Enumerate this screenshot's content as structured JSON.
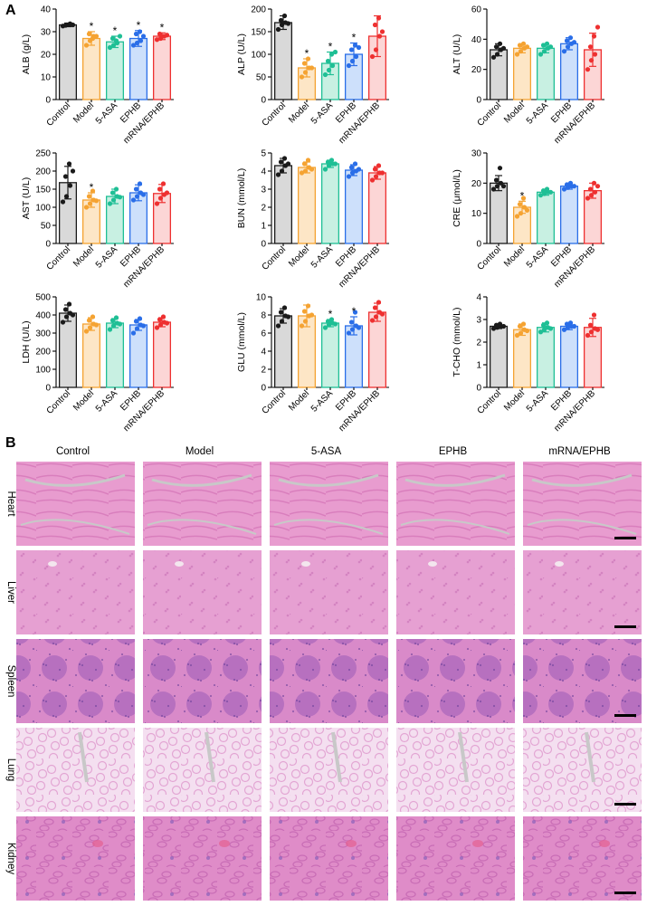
{
  "panel_a_label": "A",
  "panel_b_label": "B",
  "colors": {
    "Control": {
      "stroke": "#1a1a1a",
      "fill": "#d9d9d9",
      "dot": "#1a1a1a"
    },
    "Model": {
      "stroke": "#f5a332",
      "fill": "#fde6c6",
      "dot": "#f5a332"
    },
    "5-ASA": {
      "stroke": "#1fbf95",
      "fill": "#c8f0e2",
      "dot": "#1fbf95"
    },
    "EPHB": {
      "stroke": "#2a6ee8",
      "fill": "#cde0fb",
      "dot": "#2a6ee8"
    },
    "mRNA/EPHB": {
      "stroke": "#ee3030",
      "fill": "#fcd6d6",
      "dot": "#ee3030"
    }
  },
  "chart_data": [
    {
      "type": "bar",
      "ylabel": "ALB (g/L)",
      "ylim": [
        0,
        40
      ],
      "yticks": [
        0,
        10,
        20,
        30,
        40
      ],
      "categories": [
        "Control",
        "Model",
        "5-ASA",
        "EPHB",
        "mRNA/EPHB"
      ],
      "values": [
        33,
        27,
        25.5,
        27,
        28
      ],
      "errors": [
        0.8,
        3,
        2.5,
        3.5,
        1.5
      ],
      "points": [
        [
          32.5,
          33,
          33.5,
          32.8,
          33.2,
          33
        ],
        [
          24,
          26,
          28,
          29,
          27,
          28
        ],
        [
          23,
          24,
          25,
          27,
          26,
          28
        ],
        [
          24,
          25,
          26,
          29,
          30,
          28
        ],
        [
          26.5,
          27,
          28,
          29,
          28,
          28.5
        ]
      ],
      "significance": [
        "",
        "*",
        "*",
        "*",
        "*"
      ]
    },
    {
      "type": "bar",
      "ylabel": "ALP (U/L)",
      "ylim": [
        0,
        200
      ],
      "yticks": [
        0,
        50,
        100,
        150,
        200
      ],
      "categories": [
        "Control",
        "Model",
        "5-ASA",
        "EPHB",
        "mRNA/EPHB"
      ],
      "values": [
        170,
        70,
        80,
        100,
        140
      ],
      "errors": [
        15,
        20,
        25,
        25,
        45
      ],
      "points": [
        [
          155,
          165,
          170,
          175,
          185,
          168
        ],
        [
          50,
          60,
          70,
          80,
          90,
          70
        ],
        [
          55,
          65,
          75,
          85,
          100,
          105
        ],
        [
          75,
          85,
          95,
          110,
          120,
          115
        ],
        [
          95,
          110,
          140,
          165,
          180,
          150
        ]
      ],
      "significance": [
        "",
        "*",
        "*",
        "*",
        ""
      ]
    },
    {
      "type": "bar",
      "ylabel": "ALT (U/L)",
      "ylim": [
        0,
        60
      ],
      "yticks": [
        0,
        20,
        40,
        60
      ],
      "categories": [
        "Control",
        "Model",
        "5-ASA",
        "EPHB",
        "mRNA/EPHB"
      ],
      "values": [
        33,
        34,
        34,
        37,
        33
      ],
      "errors": [
        4,
        3,
        3,
        4,
        11
      ],
      "points": [
        [
          28,
          30,
          33,
          35,
          37,
          34
        ],
        [
          30,
          32,
          34,
          36,
          37,
          35
        ],
        [
          30,
          32,
          34,
          36,
          37,
          35
        ],
        [
          32,
          35,
          37,
          39,
          41,
          38
        ],
        [
          20,
          26,
          30,
          35,
          42,
          48
        ]
      ],
      "significance": [
        "",
        "",
        "",
        "",
        ""
      ]
    },
    {
      "type": "bar",
      "ylabel": "AST (U/L)",
      "ylim": [
        0,
        250
      ],
      "yticks": [
        0,
        50,
        100,
        150,
        200,
        250
      ],
      "categories": [
        "Control",
        "Model",
        "5-ASA",
        "EPHB",
        "mRNA/EPHB"
      ],
      "values": [
        168,
        120,
        130,
        140,
        138
      ],
      "errors": [
        45,
        20,
        20,
        22,
        25
      ],
      "points": [
        [
          115,
          130,
          160,
          185,
          220,
          200
        ],
        [
          100,
          110,
          120,
          130,
          145,
          118
        ],
        [
          110,
          120,
          130,
          140,
          150,
          128
        ],
        [
          120,
          130,
          140,
          150,
          165,
          135
        ],
        [
          110,
          125,
          135,
          150,
          165,
          140
        ]
      ],
      "significance": [
        "",
        "*",
        "",
        "",
        ""
      ]
    },
    {
      "type": "bar",
      "ylabel": "BUN (mmol/L)",
      "ylim": [
        0,
        5
      ],
      "yticks": [
        0,
        1,
        2,
        3,
        4,
        5
      ],
      "categories": [
        "Control",
        "Model",
        "5-ASA",
        "EPHB",
        "mRNA/EPHB"
      ],
      "values": [
        4.3,
        4.2,
        4.4,
        4.05,
        3.9
      ],
      "errors": [
        0.4,
        0.3,
        0.2,
        0.3,
        0.35
      ],
      "points": [
        [
          3.8,
          4.0,
          4.3,
          4.5,
          4.7,
          4.4
        ],
        [
          3.9,
          4.0,
          4.2,
          4.4,
          4.6,
          4.1
        ],
        [
          4.1,
          4.3,
          4.4,
          4.5,
          4.6,
          4.4
        ],
        [
          3.7,
          3.9,
          4.0,
          4.2,
          4.4,
          4.1
        ],
        [
          3.5,
          3.7,
          3.9,
          4.1,
          4.3,
          3.9
        ]
      ],
      "significance": [
        "",
        "",
        "",
        "",
        ""
      ]
    },
    {
      "type": "bar",
      "ylabel": "CRE (μmol/L)",
      "ylim": [
        0,
        30
      ],
      "yticks": [
        0,
        10,
        20,
        30
      ],
      "categories": [
        "Control",
        "Model",
        "5-ASA",
        "EPHB",
        "mRNA/EPHB"
      ],
      "values": [
        20,
        12,
        17,
        19,
        17.5
      ],
      "errors": [
        2.5,
        2,
        1,
        1,
        2.5
      ],
      "points": [
        [
          18,
          19,
          20,
          21,
          25,
          19
        ],
        [
          9,
          10,
          12,
          13,
          15,
          11
        ],
        [
          16,
          16.5,
          17,
          17.5,
          18,
          17
        ],
        [
          18,
          18.5,
          19,
          19.5,
          20,
          19
        ],
        [
          15,
          16,
          17,
          18,
          20,
          19
        ]
      ],
      "significance": [
        "",
        "*",
        "",
        "",
        ""
      ]
    },
    {
      "type": "bar",
      "ylabel": "LDH (U/L)",
      "ylim": [
        0,
        500
      ],
      "yticks": [
        0,
        100,
        200,
        300,
        400,
        500
      ],
      "categories": [
        "Control",
        "Model",
        "5-ASA",
        "EPHB",
        "mRNA/EPHB"
      ],
      "values": [
        410,
        350,
        355,
        345,
        360
      ],
      "errors": [
        45,
        35,
        25,
        30,
        25
      ],
      "points": [
        [
          360,
          390,
          410,
          430,
          460,
          400
        ],
        [
          310,
          330,
          350,
          370,
          390,
          345
        ],
        [
          320,
          340,
          355,
          370,
          385,
          350
        ],
        [
          300,
          325,
          345,
          365,
          380,
          340
        ],
        [
          330,
          345,
          360,
          375,
          390,
          355
        ]
      ],
      "significance": [
        "",
        "",
        "",
        "",
        ""
      ]
    },
    {
      "type": "bar",
      "ylabel": "GLU (mmol/L)",
      "ylim": [
        0,
        10
      ],
      "yticks": [
        0,
        2,
        4,
        6,
        8,
        10
      ],
      "categories": [
        "Control",
        "Model",
        "5-ASA",
        "EPHB",
        "mRNA/EPHB"
      ],
      "values": [
        7.9,
        7.9,
        7.1,
        6.8,
        8.3
      ],
      "errors": [
        0.8,
        1.2,
        0.4,
        1.0,
        1.0
      ],
      "points": [
        [
          6.8,
          7.3,
          7.9,
          8.3,
          8.8,
          7.8
        ],
        [
          6.8,
          7.3,
          7.9,
          8.4,
          9.0,
          8.0
        ],
        [
          6.6,
          6.9,
          7.1,
          7.3,
          7.5,
          7.0
        ],
        [
          6.0,
          6.4,
          6.8,
          7.2,
          8.3,
          6.6
        ],
        [
          7.4,
          7.8,
          8.3,
          8.8,
          9.4,
          8.1
        ]
      ],
      "significance": [
        "",
        "",
        "*",
        "*",
        ""
      ]
    },
    {
      "type": "bar",
      "ylabel": "T-CHO (mmol/L)",
      "ylim": [
        0,
        4
      ],
      "yticks": [
        0,
        1,
        2,
        3,
        4
      ],
      "categories": [
        "Control",
        "Model",
        "5-ASA",
        "EPHB",
        "mRNA/EPHB"
      ],
      "values": [
        2.7,
        2.55,
        2.65,
        2.7,
        2.65
      ],
      "errors": [
        0.1,
        0.25,
        0.2,
        0.15,
        0.4
      ],
      "points": [
        [
          2.6,
          2.65,
          2.7,
          2.75,
          2.8,
          2.7
        ],
        [
          2.3,
          2.4,
          2.55,
          2.7,
          2.8,
          2.5
        ],
        [
          2.45,
          2.55,
          2.65,
          2.75,
          2.85,
          2.6
        ],
        [
          2.55,
          2.65,
          2.7,
          2.8,
          2.85,
          2.7
        ],
        [
          2.3,
          2.45,
          2.6,
          2.75,
          3.2,
          2.55
        ]
      ],
      "significance": [
        "",
        "",
        "",
        "",
        ""
      ]
    }
  ],
  "histology": {
    "columns": [
      "Control",
      "Model",
      "5-ASA",
      "EPHB",
      "mRNA/EPHB"
    ],
    "rows": [
      "Heart",
      "Liver",
      "Spleen",
      "Lung",
      "Kidney"
    ],
    "tissue_colors": {
      "Heart": {
        "base": "#e89ccf",
        "accent": "#d472b5"
      },
      "Liver": {
        "base": "#e6a0d2",
        "accent": "#cf7cbd"
      },
      "Spleen": {
        "base": "#d98ac9",
        "accent": "#9a5bb5"
      },
      "Lung": {
        "base": "#f4dff0",
        "accent": "#e3a6d4"
      },
      "Kidney": {
        "base": "#df8cc8",
        "accent": "#c96db6"
      }
    },
    "background_gap": "#c8c8c8"
  }
}
